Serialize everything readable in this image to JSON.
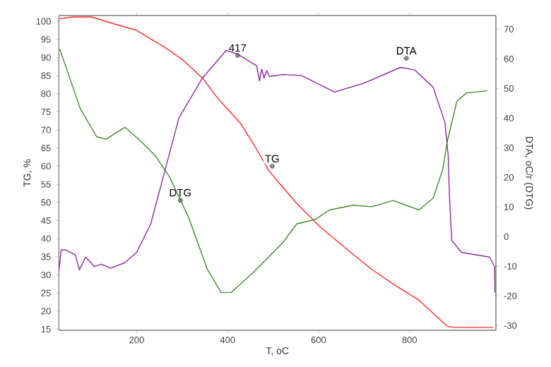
{
  "chart_data": {
    "type": "line",
    "xlabel": "T, oC",
    "ylabel": "TG, %",
    "y2label": "DTA, oC/г (DTG)",
    "xlim": [
      29,
      990
    ],
    "ylim": [
      14.7,
      101.6
    ],
    "y2lim": [
      -31.6,
      74.6
    ],
    "xticks": [
      200,
      400,
      600,
      800
    ],
    "yticks": [
      15,
      20,
      25,
      30,
      35,
      40,
      45,
      50,
      55,
      60,
      65,
      70,
      75,
      80,
      85,
      90,
      95,
      100
    ],
    "y2ticks": [
      -30,
      -20,
      -10,
      0,
      10,
      20,
      30,
      40,
      50,
      60,
      70
    ],
    "series": [
      {
        "color": "#ff2a2a",
        "x": [
          30,
          60,
          100,
          150,
          200,
          262,
          300,
          345,
          380,
          428,
          460,
          490,
          511,
          550,
          604,
          660,
          717,
          770,
          821,
          860,
          883,
          900,
          950,
          985
        ],
        "values": [
          100.7,
          101.2,
          101.2,
          99.3,
          97.5,
          92.8,
          89.5,
          84.3,
          78.5,
          71.9,
          65.5,
          58.9,
          55.7,
          50,
          43.2,
          37.3,
          31.5,
          27,
          23,
          18.5,
          15.8,
          15.5,
          15.5,
          15.5
        ]
      },
      {
        "color": "#8a2a9a",
        "axis": "y2",
        "x": [
          29,
          34,
          44,
          65,
          74,
          88,
          107,
          122,
          143,
          174,
          200,
          231,
          257,
          293,
          345,
          397,
          422,
          464,
          470,
          475,
          480,
          486,
          492,
          521,
          562,
          635,
          697,
          780,
          811,
          852,
          878,
          885,
          888,
          893,
          914,
          976,
          987,
          988
        ],
        "values": [
          -11.7,
          -4.5,
          -4.5,
          -6.1,
          -11.2,
          -6.9,
          -10.1,
          -9.3,
          -10.6,
          -8.8,
          -5.3,
          4.3,
          19.4,
          40.1,
          53.6,
          62.8,
          61.6,
          57.6,
          52.6,
          56.5,
          53.5,
          56,
          54,
          54.7,
          54.4,
          48.8,
          51.6,
          57.1,
          56.3,
          50.4,
          38.5,
          27.3,
          13,
          -1.3,
          -5.3,
          -6.9,
          -10.1,
          -18.9
        ]
      },
      {
        "color": "#3a8a2a",
        "axis": "y2",
        "x": [
          29,
          31,
          76,
          112,
          133,
          174,
          210,
          241,
          272,
          314,
          355,
          386,
          407,
          459,
          521,
          552,
          593,
          624,
          676,
          717,
          764,
          821,
          852,
          873,
          883,
          904,
          925,
          971
        ],
        "values": [
          63.2,
          63.2,
          43.2,
          33.7,
          32.9,
          36.9,
          32.1,
          27.3,
          20.2,
          6.6,
          -10.9,
          -18.9,
          -18.9,
          -11.7,
          -2.1,
          4.3,
          5.8,
          9,
          10.6,
          10.1,
          12.2,
          9,
          13,
          22.6,
          32.1,
          45.6,
          48.5,
          49.2
        ]
      }
    ],
    "annotations": [
      {
        "text": "417",
        "x": 422,
        "y": 90.6
      },
      {
        "text": "DTA",
        "x": 793,
        "y": 89.8
      },
      {
        "text": "TG",
        "x": 498,
        "y": 60
      },
      {
        "text": "DTG",
        "x": 296,
        "y": 50.6
      }
    ]
  }
}
